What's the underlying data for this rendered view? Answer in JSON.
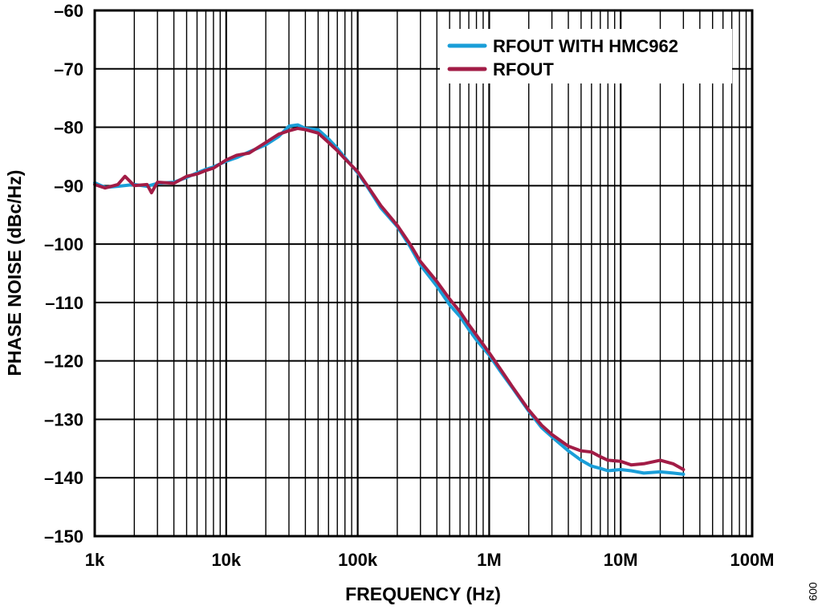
{
  "chart_data": {
    "type": "line",
    "title": "",
    "xlabel": "FREQUENCY (Hz)",
    "ylabel": "PHASE NOISE (dBc/Hz)",
    "x_scale": "log",
    "xlim": [
      1000,
      100000000
    ],
    "ylim": [
      -150,
      -60
    ],
    "x_ticks": [
      {
        "value": 1000,
        "label": "1k"
      },
      {
        "value": 10000,
        "label": "10k"
      },
      {
        "value": 100000,
        "label": "100k"
      },
      {
        "value": 1000000,
        "label": "1M"
      },
      {
        "value": 10000000,
        "label": "10M"
      },
      {
        "value": 100000000,
        "label": "100M"
      }
    ],
    "y_ticks": [
      {
        "value": -60,
        "label": "–60"
      },
      {
        "value": -70,
        "label": "–70"
      },
      {
        "value": -80,
        "label": "–80"
      },
      {
        "value": -90,
        "label": "–90"
      },
      {
        "value": -100,
        "label": "–100"
      },
      {
        "value": -110,
        "label": "–110"
      },
      {
        "value": -120,
        "label": "–120"
      },
      {
        "value": -130,
        "label": "–130"
      },
      {
        "value": -140,
        "label": "–140"
      },
      {
        "value": -150,
        "label": "–150"
      }
    ],
    "grid": true,
    "legend_position": "top-right",
    "series": [
      {
        "name": "RFOUT WITH HMC962",
        "color": "#1a9ed8",
        "x": [
          1000,
          1200,
          1500,
          2000,
          2500,
          3000,
          4000,
          5000,
          6000,
          7000,
          8000,
          10000,
          12000,
          15000,
          20000,
          25000,
          30000,
          35000,
          40000,
          50000,
          60000,
          70000,
          80000,
          100000,
          120000,
          150000,
          200000,
          250000,
          300000,
          400000,
          500000,
          600000,
          700000,
          800000,
          1000000,
          1200000,
          1500000,
          2000000,
          2500000,
          3000000,
          4000000,
          5000000,
          6000000,
          7000000,
          8000000,
          10000000,
          12000000,
          15000000,
          20000000,
          25000000,
          30000000
        ],
        "y": [
          -89.5,
          -90.3,
          -90.1,
          -89.8,
          -90.1,
          -89.6,
          -89.4,
          -88.6,
          -87.8,
          -87.2,
          -86.8,
          -85.8,
          -85.2,
          -84.2,
          -83.0,
          -81.6,
          -79.8,
          -79.6,
          -80.2,
          -80.4,
          -82.0,
          -83.6,
          -85.2,
          -87.8,
          -90.4,
          -93.8,
          -97.0,
          -100.4,
          -103.6,
          -107.2,
          -110.4,
          -112.4,
          -114.6,
          -116.4,
          -119.0,
          -121.6,
          -124.6,
          -128.6,
          -131.4,
          -133.0,
          -135.4,
          -137.0,
          -138.0,
          -138.4,
          -138.8,
          -138.6,
          -138.8,
          -139.2,
          -139.0,
          -139.2,
          -139.4
        ]
      },
      {
        "name": "RFOUT",
        "color": "#a21c46",
        "x": [
          1000,
          1200,
          1500,
          1700,
          2000,
          2500,
          2700,
          3000,
          4000,
          5000,
          6000,
          7000,
          8000,
          10000,
          12000,
          15000,
          20000,
          25000,
          30000,
          35000,
          40000,
          50000,
          60000,
          70000,
          80000,
          100000,
          120000,
          150000,
          200000,
          250000,
          300000,
          400000,
          500000,
          600000,
          700000,
          800000,
          1000000,
          1200000,
          1500000,
          2000000,
          2500000,
          3000000,
          4000000,
          5000000,
          6000000,
          7000000,
          8000000,
          10000000,
          12000000,
          15000000,
          20000000,
          25000000,
          30000000
        ],
        "y": [
          -89.8,
          -90.4,
          -89.8,
          -88.4,
          -90.0,
          -89.8,
          -91.2,
          -89.4,
          -89.6,
          -88.4,
          -88.0,
          -87.4,
          -87.0,
          -85.6,
          -84.8,
          -84.4,
          -82.6,
          -81.2,
          -80.6,
          -80.2,
          -80.4,
          -81.0,
          -82.6,
          -84.0,
          -85.4,
          -87.6,
          -90.2,
          -93.4,
          -96.8,
          -100.0,
          -103.0,
          -106.4,
          -109.4,
          -111.6,
          -113.8,
          -115.6,
          -118.6,
          -121.2,
          -124.4,
          -128.4,
          -131.0,
          -132.6,
          -134.6,
          -135.4,
          -135.6,
          -136.4,
          -137.0,
          -137.2,
          -137.8,
          -137.6,
          -137.0,
          -137.6,
          -138.6
        ]
      }
    ]
  },
  "figure_id": "009"
}
